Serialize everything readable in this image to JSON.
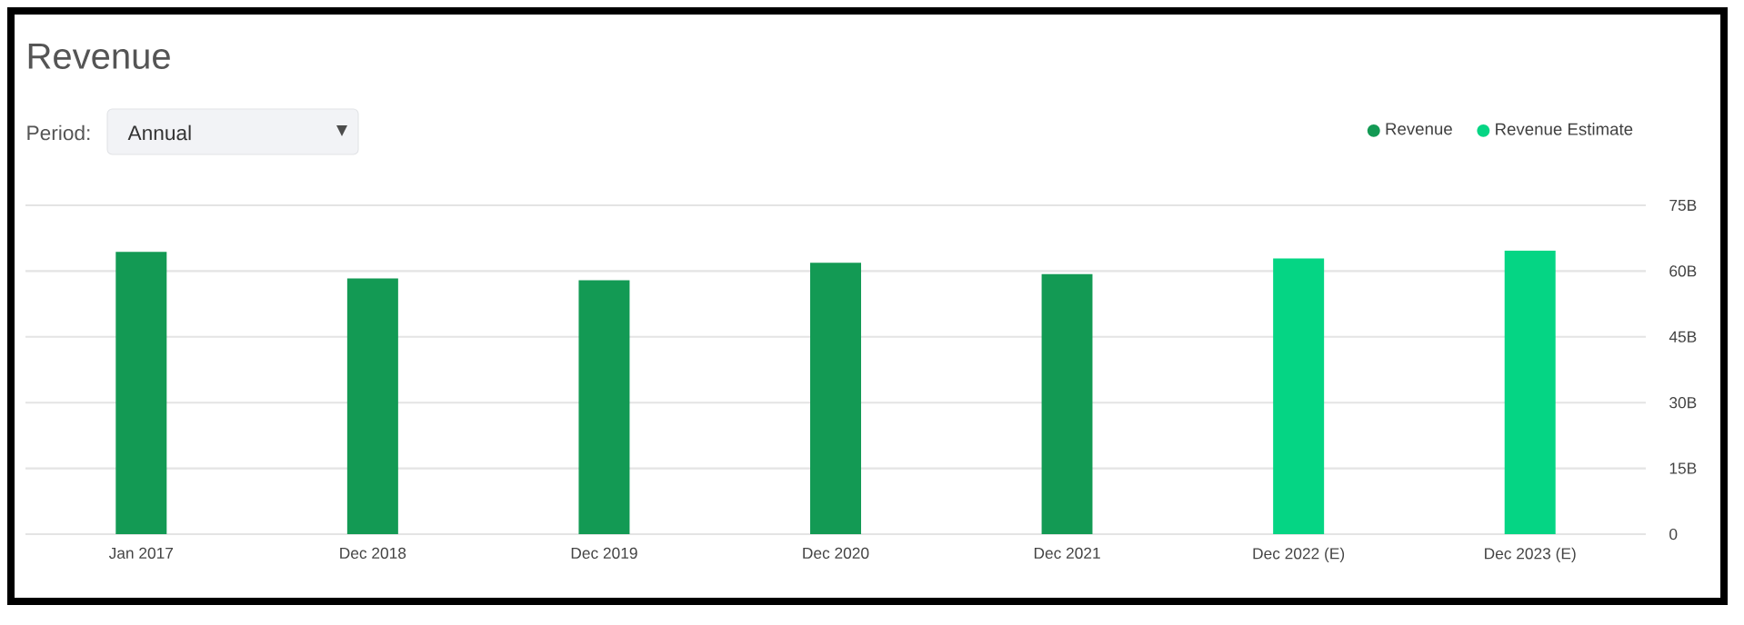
{
  "chart_data": {
    "type": "bar",
    "title": "Revenue",
    "categories": [
      "Jan 2017",
      "Dec 2018",
      "Dec 2019",
      "Dec 2020",
      "Dec 2021",
      "Dec 2022 (E)",
      "Dec 2023 (E)"
    ],
    "series": [
      {
        "name": "Revenue",
        "color": "#139a54",
        "values": [
          64.4,
          58.3,
          57.9,
          61.9,
          59.3,
          null,
          null
        ]
      },
      {
        "name": "Revenue Estimate",
        "color": "#05d584",
        "values": [
          null,
          null,
          null,
          null,
          null,
          62.9,
          64.7
        ]
      }
    ],
    "ylim": [
      0,
      75
    ],
    "yticks": [
      {
        "value": 0,
        "label": "0"
      },
      {
        "value": 15,
        "label": "15B"
      },
      {
        "value": 30,
        "label": "30B"
      },
      {
        "value": 45,
        "label": "45B"
      },
      {
        "value": 60,
        "label": "60B"
      },
      {
        "value": 75,
        "label": "75B"
      }
    ],
    "grid": "y",
    "legend": "top right",
    "marker": "circle",
    "annotations": [
      "Period:",
      "Annual"
    ]
  }
}
